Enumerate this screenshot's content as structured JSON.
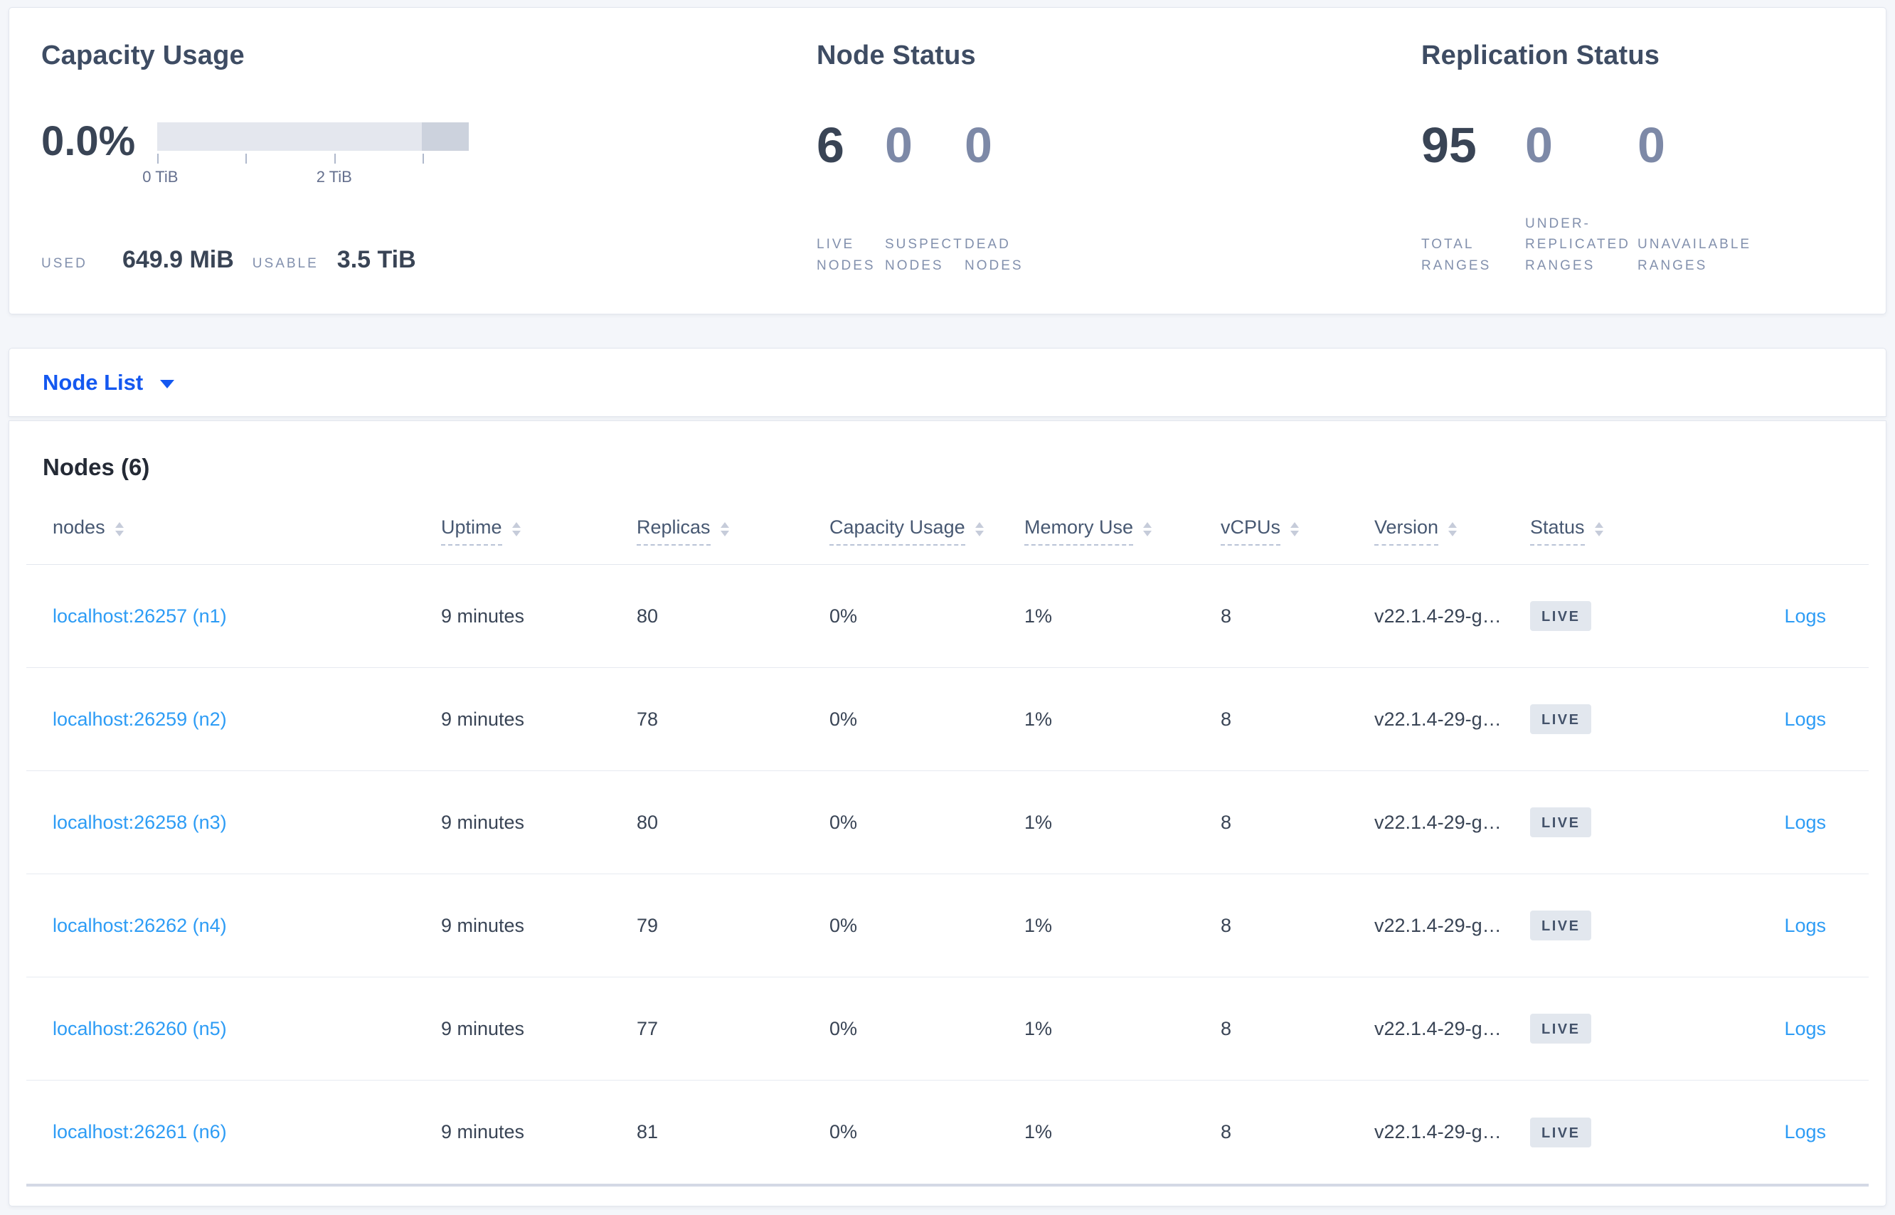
{
  "colors": {
    "accent_blue": "#1458f0",
    "link_blue": "#2d9cf5",
    "heading": "#3e4c63",
    "stat_dark": "#394455",
    "stat_muted": "#7d89a7",
    "caps_label": "#8290ad",
    "badge_bg": "#e2e7ee",
    "badge_text": "#44536b",
    "page_bg": "#f4f6fa",
    "panel_border": "#e2e6ee",
    "divider": "#e7eaf1",
    "bar_light": "#e4e7ee",
    "bar_dark": "#ccd2dd"
  },
  "icons": {
    "caret_down": "triangle-down",
    "sort": "triangle-up-down"
  },
  "summary": {
    "capacity": {
      "title": "Capacity Usage",
      "percent": "0.0%",
      "tick_labels": [
        "0 TiB",
        "2 TiB"
      ],
      "used_label": "USED",
      "used_value": "649.9 MiB",
      "usable_label": "USABLE",
      "usable_value": "3.5 TiB"
    },
    "node_status": {
      "title": "Node Status",
      "stats": [
        {
          "value": "6",
          "label": "LIVE NODES"
        },
        {
          "value": "0",
          "label": "SUSPECT NODES"
        },
        {
          "value": "0",
          "label": "DEAD NODES"
        }
      ]
    },
    "replication": {
      "title": "Replication Status",
      "stats": [
        {
          "value": "95",
          "label": "TOTAL RANGES"
        },
        {
          "value": "0",
          "label": "UNDER-REPLICATED RANGES"
        },
        {
          "value": "0",
          "label": "UNAVAILABLE RANGES"
        }
      ]
    }
  },
  "dropdown": {
    "label": "Node List"
  },
  "nodes_section": {
    "heading": "Nodes (6)",
    "columns": [
      {
        "label": "nodes"
      },
      {
        "label": "Uptime"
      },
      {
        "label": "Replicas"
      },
      {
        "label": "Capacity Usage"
      },
      {
        "label": "Memory Use"
      },
      {
        "label": "vCPUs"
      },
      {
        "label": "Version"
      },
      {
        "label": "Status"
      }
    ],
    "rows": [
      {
        "address": "localhost:26257 (n1)",
        "uptime": "9 minutes",
        "replicas": "80",
        "capacity_usage": "0%",
        "memory_use": "1%",
        "vcpus": "8",
        "version": "v22.1.4-29-g…",
        "status": "LIVE",
        "logs_label": "Logs"
      },
      {
        "address": "localhost:26259 (n2)",
        "uptime": "9 minutes",
        "replicas": "78",
        "capacity_usage": "0%",
        "memory_use": "1%",
        "vcpus": "8",
        "version": "v22.1.4-29-g…",
        "status": "LIVE",
        "logs_label": "Logs"
      },
      {
        "address": "localhost:26258 (n3)",
        "uptime": "9 minutes",
        "replicas": "80",
        "capacity_usage": "0%",
        "memory_use": "1%",
        "vcpus": "8",
        "version": "v22.1.4-29-g…",
        "status": "LIVE",
        "logs_label": "Logs"
      },
      {
        "address": "localhost:26262 (n4)",
        "uptime": "9 minutes",
        "replicas": "79",
        "capacity_usage": "0%",
        "memory_use": "1%",
        "vcpus": "8",
        "version": "v22.1.4-29-g…",
        "status": "LIVE",
        "logs_label": "Logs"
      },
      {
        "address": "localhost:26260 (n5)",
        "uptime": "9 minutes",
        "replicas": "77",
        "capacity_usage": "0%",
        "memory_use": "1%",
        "vcpus": "8",
        "version": "v22.1.4-29-g…",
        "status": "LIVE",
        "logs_label": "Logs"
      },
      {
        "address": "localhost:26261 (n6)",
        "uptime": "9 minutes",
        "replicas": "81",
        "capacity_usage": "0%",
        "memory_use": "1%",
        "vcpus": "8",
        "version": "v22.1.4-29-g…",
        "status": "LIVE",
        "logs_label": "Logs"
      }
    ]
  }
}
